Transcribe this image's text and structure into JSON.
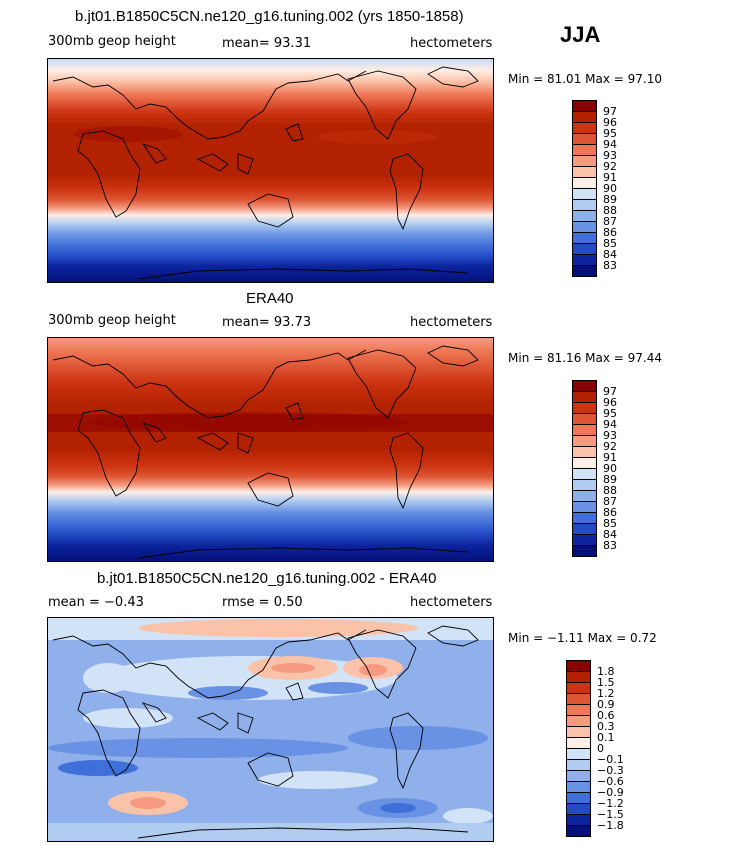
{
  "season": "JJA",
  "panels": [
    {
      "title": "b.jt01.B1850C5CN.ne120_g16.tuning.002 (yrs 1850-1858)",
      "left_label": "300mb geop height",
      "center_label": "mean=  93.31",
      "right_label": "hectometers",
      "minmax": "Min =  81.01 Max =  97.10",
      "levels": [
        "97",
        "96",
        "95",
        "94",
        "93",
        "92",
        "91",
        "90",
        "89",
        "88",
        "87",
        "86",
        "85",
        "84",
        "83"
      ],
      "colors": [
        "#8b0000",
        "#b22200",
        "#cc3311",
        "#dd5533",
        "#ee7755",
        "#f59a80",
        "#fbc2aa",
        "#fdeee6",
        "#d3e3f7",
        "#b0ccf0",
        "#8fb0ea",
        "#6a92e4",
        "#3f6fd8",
        "#2349c4",
        "#0c249e",
        "#04107a"
      ]
    },
    {
      "title": "ERA40",
      "left_label": "300mb geop height",
      "center_label": "mean=  93.73",
      "right_label": "hectometers",
      "minmax": "Min =  81.16 Max =  97.44",
      "levels": [
        "97",
        "96",
        "95",
        "94",
        "93",
        "92",
        "91",
        "90",
        "89",
        "88",
        "87",
        "86",
        "85",
        "84",
        "83"
      ],
      "colors": [
        "#8b0000",
        "#b22200",
        "#cc3311",
        "#dd5533",
        "#ee7755",
        "#f59a80",
        "#fbc2aa",
        "#fdeee6",
        "#d3e3f7",
        "#b0ccf0",
        "#8fb0ea",
        "#6a92e4",
        "#3f6fd8",
        "#2349c4",
        "#0c249e",
        "#04107a"
      ]
    },
    {
      "title": "b.jt01.B1850C5CN.ne120_g16.tuning.002 - ERA40",
      "left_label": "mean =  −0.43",
      "center_label": "rmse =   0.50",
      "right_label": "hectometers",
      "minmax": "Min =  −1.11 Max =   0.72",
      "levels": [
        "1.8",
        "1.5",
        "1.2",
        "0.9",
        "0.6",
        "0.3",
        "0.1",
        "0",
        "−0.1",
        "−0.3",
        "−0.6",
        "−0.9",
        "−1.2",
        "−1.5",
        "−1.8"
      ],
      "colors": [
        "#8b0000",
        "#b22200",
        "#cc3311",
        "#dd5533",
        "#ee7755",
        "#f59a80",
        "#fbc2aa",
        "#fdeee6",
        "#d3e3f7",
        "#b0ccf0",
        "#8fb0ea",
        "#6a92e4",
        "#3f6fd8",
        "#2349c4",
        "#0c249e",
        "#04107a"
      ]
    }
  ]
}
